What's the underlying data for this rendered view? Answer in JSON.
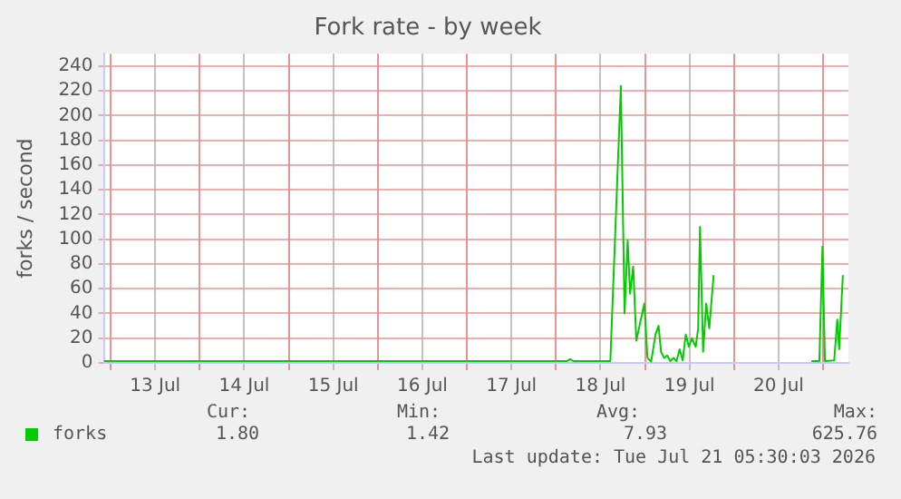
{
  "chart_data": {
    "type": "line",
    "title": "Fork rate - by week",
    "ylabel": "forks / second",
    "x": [
      "2026-07-12T22:10",
      "2026-07-18T03:00",
      "2026-07-18T03:50",
      "2026-07-18T04:40",
      "2026-07-18T14:40",
      "2026-07-18T17:30",
      "2026-07-18T18:30",
      "2026-07-18T19:20",
      "2026-07-18T20:00",
      "2026-07-18T20:50",
      "2026-07-18T21:40",
      "2026-07-18T22:40",
      "2026-07-18T23:50",
      "2026-07-19T00:40",
      "2026-07-19T01:40",
      "2026-07-19T02:50",
      "2026-07-19T03:40",
      "2026-07-19T04:20",
      "2026-07-19T05:10",
      "2026-07-19T06:00",
      "2026-07-19T06:50",
      "2026-07-19T07:40",
      "2026-07-19T08:30",
      "2026-07-19T09:20",
      "2026-07-19T10:10",
      "2026-07-19T11:00",
      "2026-07-19T11:50",
      "2026-07-19T12:40",
      "2026-07-19T13:40",
      "2026-07-19T14:20",
      "2026-07-19T14:50",
      "2026-07-19T15:40",
      "2026-07-19T16:30",
      "2026-07-19T17:20",
      "2026-07-19T18:30",
      "2026-07-20T00:00",
      "2026-07-20T20:50",
      "2026-07-20T23:00",
      "2026-07-20T23:50",
      "2026-07-21T00:30",
      "2026-07-21T03:00",
      "2026-07-21T03:50",
      "2026-07-21T04:20",
      "2026-07-21T05:20"
    ],
    "series": [
      {
        "name": "forks",
        "color": "#00cc00",
        "values": [
          1.5,
          1.5,
          3,
          1.5,
          1.5,
          224,
          40,
          99,
          56,
          78,
          18,
          32,
          48,
          4,
          1,
          23,
          30,
          9,
          4,
          6,
          1.5,
          4,
          1.5,
          11,
          2,
          23,
          13,
          20,
          13,
          28,
          110,
          9,
          48,
          28,
          71,
          null,
          1.5,
          1.5,
          94,
          1.5,
          2,
          35,
          11,
          71
        ]
      }
    ],
    "xlim": [
      "2026-07-12T22:10",
      "2026-07-21T06:50"
    ],
    "xticks": [
      {
        "value": "2026-07-13",
        "label": null
      },
      {
        "value": "2026-07-13T12:00",
        "label": "13 Jul"
      },
      {
        "value": "2026-07-14",
        "label": null
      },
      {
        "value": "2026-07-14T12:00",
        "label": "14 Jul"
      },
      {
        "value": "2026-07-15",
        "label": null
      },
      {
        "value": "2026-07-15T12:00",
        "label": "15 Jul"
      },
      {
        "value": "2026-07-16",
        "label": null
      },
      {
        "value": "2026-07-16T12:00",
        "label": "16 Jul"
      },
      {
        "value": "2026-07-17",
        "label": null
      },
      {
        "value": "2026-07-17T12:00",
        "label": "17 Jul"
      },
      {
        "value": "2026-07-18",
        "label": null
      },
      {
        "value": "2026-07-18T12:00",
        "label": "18 Jul"
      },
      {
        "value": "2026-07-19",
        "label": null
      },
      {
        "value": "2026-07-19T12:00",
        "label": "19 Jul"
      },
      {
        "value": "2026-07-20",
        "label": null
      },
      {
        "value": "2026-07-20T12:00",
        "label": "20 Jul"
      },
      {
        "value": "2026-07-21",
        "label": null
      }
    ],
    "ylim": [
      0,
      250
    ],
    "yticks": [
      0,
      20,
      40,
      60,
      80,
      100,
      120,
      140,
      160,
      180,
      200,
      220,
      240
    ],
    "grid": true,
    "legend": "bottom left",
    "marker": "none",
    "line_style": "solid",
    "annotations": [
      "Cur:",
      "Min:",
      "Avg:",
      "Max:",
      "1.80",
      "1.42",
      "7.93",
      "625.76",
      "Last update: Tue Jul 21 05:30:03 2026"
    ]
  }
}
